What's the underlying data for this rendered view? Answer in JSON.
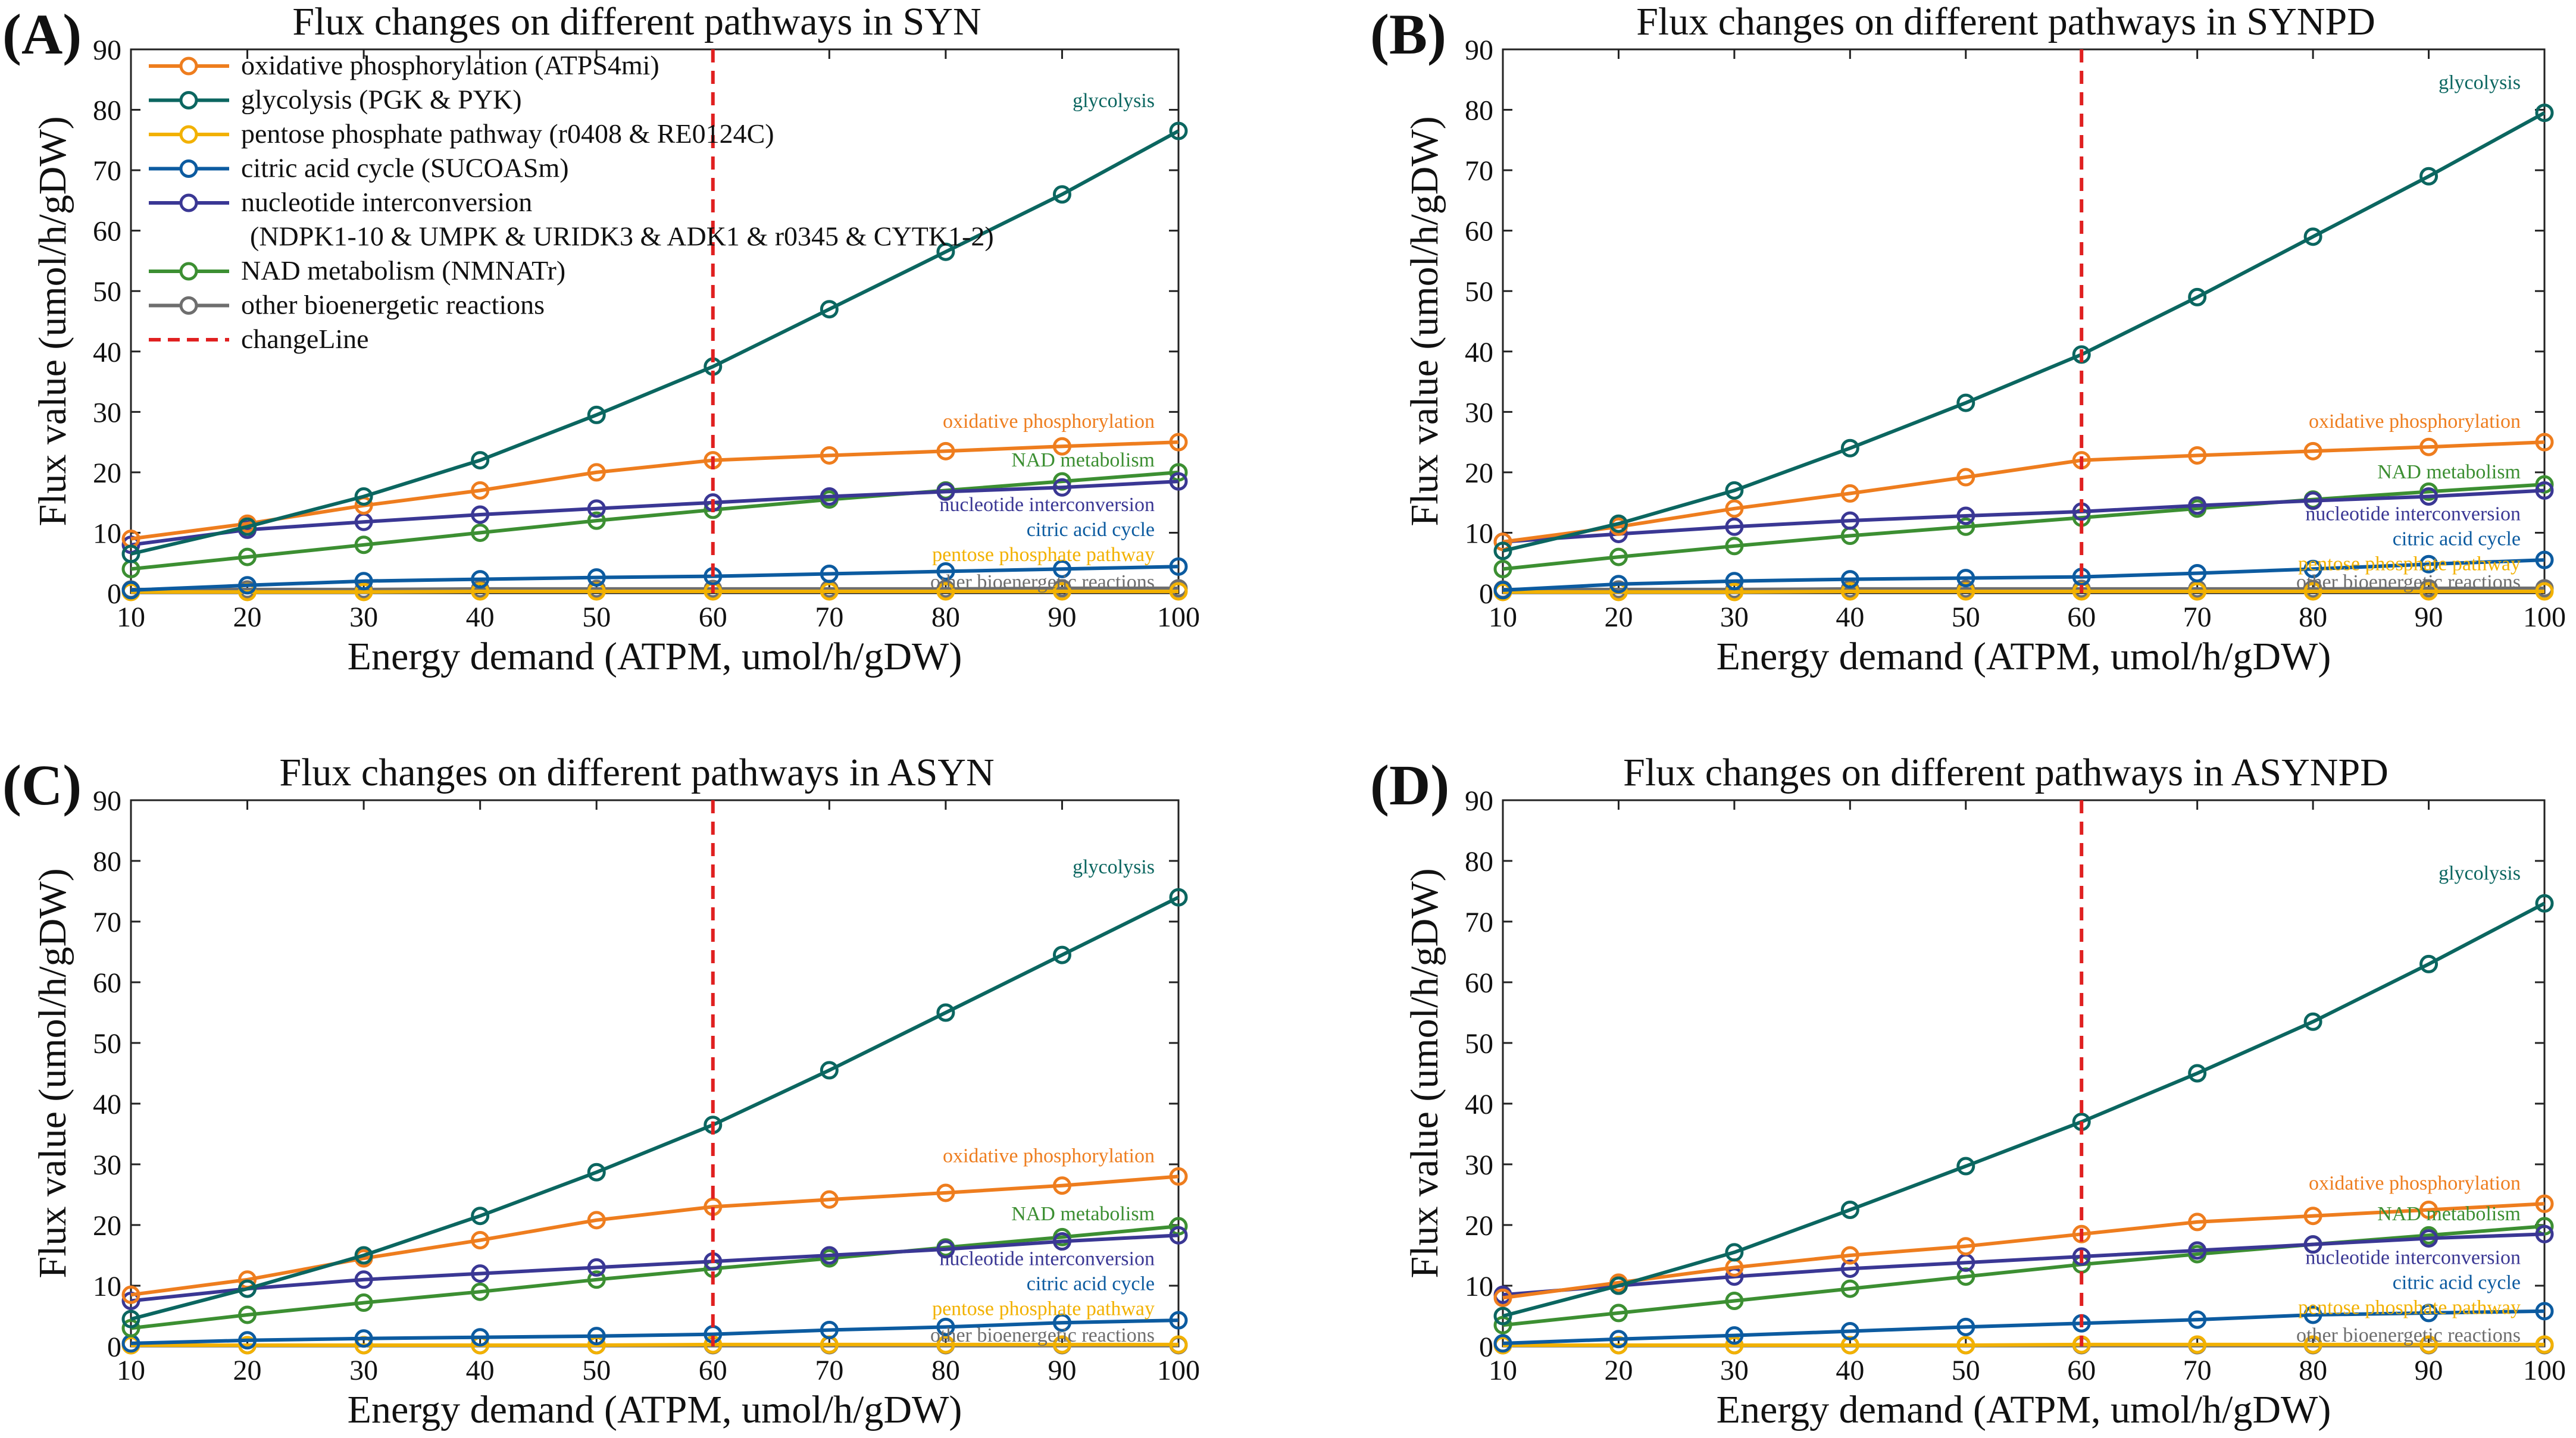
{
  "figure": {
    "legend_entries": [
      {
        "label": "oxidative phosphorylation (ATPS4mi)",
        "color": "#EE7D1E"
      },
      {
        "label": "glycolysis (PGK & PYK)",
        "color": "#0B6660"
      },
      {
        "label": "pentose phosphate pathway (r0408 & RE0124C)",
        "color": "#F2B100"
      },
      {
        "label": "citric acid cycle (SUCOASm)",
        "color": "#0C5BA0"
      },
      {
        "label": "nucleotide interconversion",
        "color": "#3A3794"
      },
      {
        "label": "(NDPK1-10 & UMPK & URIDK3 & ADK1 & r0345 & CYTK1-2)",
        "color": null
      },
      {
        "label": "NAD metabolism (NMNATr)",
        "color": "#3C8F32"
      },
      {
        "label": "other bioenergetic reactions",
        "color": "#6E6E6E"
      },
      {
        "label": "changeLine",
        "color": "#E02020",
        "dashed": true
      }
    ]
  },
  "chart_data": [
    {
      "type": "line",
      "panel_label": "(A)",
      "title": "Flux changes on different pathways in SYN",
      "xlabel": "Energy demand (ATPM, umol/h/gDW)",
      "ylabel": "Flux value (umol/h/gDW)",
      "x": [
        10,
        20,
        30,
        40,
        50,
        60,
        70,
        80,
        90,
        100
      ],
      "xlim": [
        10,
        100
      ],
      "ylim": [
        0,
        90
      ],
      "xticks": [
        "10",
        "20",
        "30",
        "40",
        "50",
        "60",
        "70",
        "80",
        "90",
        "100"
      ],
      "yticks": [
        "0",
        "10",
        "20",
        "30",
        "40",
        "50",
        "60",
        "70",
        "80",
        "90"
      ],
      "change_line_x": 60,
      "legend": true,
      "series": [
        {
          "name": "oxidative phosphorylation",
          "color": "#EE7D1E",
          "values": [
            9,
            11.5,
            14.5,
            17,
            20,
            22,
            22.8,
            23.5,
            24.3,
            25
          ]
        },
        {
          "name": "glycolysis",
          "color": "#0B6660",
          "values": [
            6.5,
            11,
            16,
            22,
            29.5,
            37.5,
            47,
            56.5,
            66,
            76.5
          ]
        },
        {
          "name": "pentose phosphate pathway",
          "color": "#F2B100",
          "values": [
            0.2,
            0.2,
            0.2,
            0.3,
            0.3,
            0.3,
            0.3,
            0.3,
            0.3,
            0.3
          ]
        },
        {
          "name": "citric acid cycle",
          "color": "#0C5BA0",
          "values": [
            0.5,
            1.3,
            2,
            2.3,
            2.6,
            2.8,
            3.2,
            3.6,
            4,
            4.4
          ]
        },
        {
          "name": "nucleotide interconversion",
          "color": "#3A3794",
          "values": [
            8,
            10.5,
            11.8,
            13,
            14,
            15,
            16,
            16.8,
            17.5,
            18.5
          ]
        },
        {
          "name": "NAD metabolism",
          "color": "#3C8F32",
          "values": [
            4,
            6,
            8,
            10,
            12,
            13.8,
            15.5,
            17,
            18.5,
            20
          ]
        },
        {
          "name": "other bioenergetic reactions",
          "color": "#6E6E6E",
          "values": [
            0.6,
            0.6,
            0.6,
            0.7,
            0.7,
            0.7,
            0.7,
            0.7,
            0.8,
            0.8
          ]
        }
      ],
      "annotations": [
        {
          "text": "glycolysis",
          "color": "#0B6660"
        },
        {
          "text": "oxidative phosphorylation",
          "color": "#EE7D1E"
        },
        {
          "text": "NAD metabolism",
          "color": "#3C8F32"
        },
        {
          "text": "nucleotide interconversion",
          "color": "#3A3794"
        },
        {
          "text": "citric acid cycle",
          "color": "#0C5BA0"
        },
        {
          "text": "pentose phosphate pathway",
          "color": "#F2B100"
        },
        {
          "text": "other bioenergetic reactions",
          "color": "#6E6E6E"
        }
      ]
    },
    {
      "type": "line",
      "panel_label": "(B)",
      "title": "Flux changes on different pathways in SYNPD",
      "xlabel": "Energy demand (ATPM, umol/h/gDW)",
      "ylabel": "Flux value (umol/h/gDW)",
      "x": [
        10,
        20,
        30,
        40,
        50,
        60,
        70,
        80,
        90,
        100
      ],
      "xlim": [
        10,
        100
      ],
      "ylim": [
        0,
        90
      ],
      "xticks": [
        "10",
        "20",
        "30",
        "40",
        "50",
        "60",
        "70",
        "80",
        "90",
        "100"
      ],
      "yticks": [
        "0",
        "10",
        "20",
        "30",
        "40",
        "50",
        "60",
        "70",
        "80",
        "90"
      ],
      "change_line_x": 60,
      "legend": false,
      "series": [
        {
          "name": "oxidative phosphorylation",
          "color": "#EE7D1E",
          "values": [
            8.5,
            11,
            14,
            16.5,
            19.2,
            22,
            22.8,
            23.5,
            24.2,
            25
          ]
        },
        {
          "name": "glycolysis",
          "color": "#0B6660",
          "values": [
            7,
            11.5,
            17,
            24,
            31.5,
            39.5,
            49,
            59,
            69,
            79.5
          ]
        },
        {
          "name": "pentose phosphate pathway",
          "color": "#F2B100",
          "values": [
            0.2,
            0.2,
            0.2,
            0.3,
            0.3,
            0.3,
            0.3,
            0.3,
            0.3,
            0.3
          ]
        },
        {
          "name": "citric acid cycle",
          "color": "#0C5BA0",
          "values": [
            0.5,
            1.5,
            2,
            2.3,
            2.5,
            2.7,
            3.3,
            4,
            4.8,
            5.5
          ]
        },
        {
          "name": "nucleotide interconversion",
          "color": "#3A3794",
          "values": [
            8.5,
            9.8,
            11,
            12,
            12.8,
            13.5,
            14.5,
            15.3,
            16,
            17
          ]
        },
        {
          "name": "NAD metabolism",
          "color": "#3C8F32",
          "values": [
            4,
            6,
            7.8,
            9.5,
            11,
            12.5,
            14,
            15.5,
            16.8,
            18
          ]
        },
        {
          "name": "other bioenergetic reactions",
          "color": "#6E6E6E",
          "values": [
            0.6,
            0.6,
            0.6,
            0.7,
            0.7,
            0.7,
            0.7,
            0.7,
            0.8,
            0.8
          ]
        }
      ],
      "annotations": [
        {
          "text": "glycolysis",
          "color": "#0B6660"
        },
        {
          "text": "oxidative phosphorylation",
          "color": "#EE7D1E"
        },
        {
          "text": "NAD metabolism",
          "color": "#3C8F32"
        },
        {
          "text": "nucleotide interconversion",
          "color": "#3A3794"
        },
        {
          "text": "citric acid cycle",
          "color": "#0C5BA0"
        },
        {
          "text": "pentose phosphate pathway",
          "color": "#F2B100"
        },
        {
          "text": "other bioenergetic reactions",
          "color": "#6E6E6E"
        }
      ]
    },
    {
      "type": "line",
      "panel_label": "(C)",
      "title": "Flux changes on different pathways in ASYN",
      "xlabel": "Energy demand (ATPM, umol/h/gDW)",
      "ylabel": "Flux value (umol/h/gDW)",
      "x": [
        10,
        20,
        30,
        40,
        50,
        60,
        70,
        80,
        90,
        100
      ],
      "xlim": [
        10,
        100
      ],
      "ylim": [
        0,
        90
      ],
      "xticks": [
        "10",
        "20",
        "30",
        "40",
        "50",
        "60",
        "70",
        "80",
        "90",
        "100"
      ],
      "yticks": [
        "0",
        "10",
        "20",
        "30",
        "40",
        "50",
        "60",
        "70",
        "80",
        "90"
      ],
      "change_line_x": 60,
      "legend": false,
      "series": [
        {
          "name": "oxidative phosphorylation",
          "color": "#EE7D1E",
          "values": [
            8.5,
            11,
            14.5,
            17.5,
            20.8,
            23,
            24.2,
            25.3,
            26.5,
            28
          ]
        },
        {
          "name": "glycolysis",
          "color": "#0B6660",
          "values": [
            4.5,
            9.5,
            15,
            21.5,
            28.7,
            36.5,
            45.5,
            55,
            64.5,
            74
          ]
        },
        {
          "name": "pentose phosphate pathway",
          "color": "#F2B100",
          "values": [
            0.2,
            0.2,
            0.2,
            0.2,
            0.2,
            0.3,
            0.3,
            0.3,
            0.3,
            0.3
          ]
        },
        {
          "name": "citric acid cycle",
          "color": "#0C5BA0",
          "values": [
            0.5,
            1,
            1.3,
            1.5,
            1.7,
            2,
            2.7,
            3.2,
            3.9,
            4.3
          ]
        },
        {
          "name": "nucleotide interconversion",
          "color": "#3A3794",
          "values": [
            7.5,
            9.5,
            11,
            12,
            13,
            14,
            15,
            16,
            17.3,
            18.3
          ]
        },
        {
          "name": "NAD metabolism",
          "color": "#3C8F32",
          "values": [
            3,
            5.2,
            7.2,
            9,
            11,
            12.8,
            14.5,
            16.3,
            18,
            19.8
          ]
        },
        {
          "name": "other bioenergetic reactions",
          "color": "#6E6E6E",
          "values": [
            0.2,
            0.2,
            0.2,
            0.2,
            0.2,
            0.2,
            0.2,
            0.2,
            0.2,
            0.2
          ]
        }
      ],
      "annotations": [
        {
          "text": "glycolysis",
          "color": "#0B6660"
        },
        {
          "text": "oxidative phosphorylation",
          "color": "#EE7D1E"
        },
        {
          "text": "NAD metabolism",
          "color": "#3C8F32"
        },
        {
          "text": "nucleotide interconversion",
          "color": "#3A3794"
        },
        {
          "text": "citric acid cycle",
          "color": "#0C5BA0"
        },
        {
          "text": "pentose phosphate pathway",
          "color": "#F2B100"
        },
        {
          "text": "other bioenergetic reactions",
          "color": "#6E6E6E"
        }
      ]
    },
    {
      "type": "line",
      "panel_label": "(D)",
      "title": "Flux changes on different pathways in ASYNPD",
      "xlabel": "Energy demand (ATPM, umol/h/gDW)",
      "ylabel": "Flux value (umol/h/gDW)",
      "x": [
        10,
        20,
        30,
        40,
        50,
        60,
        70,
        80,
        90,
        100
      ],
      "xlim": [
        10,
        100
      ],
      "ylim": [
        0,
        90
      ],
      "xticks": [
        "10",
        "20",
        "30",
        "40",
        "50",
        "60",
        "70",
        "80",
        "90",
        "100"
      ],
      "yticks": [
        "0",
        "10",
        "20",
        "30",
        "40",
        "50",
        "60",
        "70",
        "80",
        "90"
      ],
      "change_line_x": 60,
      "legend": false,
      "series": [
        {
          "name": "oxidative phosphorylation",
          "color": "#EE7D1E",
          "values": [
            8,
            10.5,
            13,
            15,
            16.5,
            18.5,
            20.5,
            21.5,
            22.5,
            23.5
          ]
        },
        {
          "name": "glycolysis",
          "color": "#0B6660",
          "values": [
            5,
            10,
            15.5,
            22.5,
            29.7,
            37,
            45,
            53.5,
            63,
            73
          ]
        },
        {
          "name": "pentose phosphate pathway",
          "color": "#F2B100",
          "values": [
            0.2,
            0.2,
            0.2,
            0.2,
            0.2,
            0.3,
            0.3,
            0.3,
            0.3,
            0.3
          ]
        },
        {
          "name": "citric acid cycle",
          "color": "#0C5BA0",
          "values": [
            0.5,
            1.2,
            1.8,
            2.5,
            3.2,
            3.8,
            4.4,
            5.2,
            5.5,
            5.8
          ]
        },
        {
          "name": "nucleotide interconversion",
          "color": "#3A3794",
          "values": [
            8.5,
            10,
            11.5,
            12.8,
            13.8,
            14.8,
            15.8,
            16.8,
            17.8,
            18.5
          ]
        },
        {
          "name": "NAD metabolism",
          "color": "#3C8F32",
          "values": [
            3.5,
            5.5,
            7.5,
            9.5,
            11.5,
            13.5,
            15.2,
            16.8,
            18.3,
            19.8
          ]
        },
        {
          "name": "other bioenergetic reactions",
          "color": "#6E6E6E",
          "values": [
            0.2,
            0.2,
            0.2,
            0.2,
            0.2,
            0.2,
            0.2,
            0.2,
            0.2,
            0.2
          ]
        }
      ],
      "annotations": [
        {
          "text": "glycolysis",
          "color": "#0B6660"
        },
        {
          "text": "oxidative phosphorylation",
          "color": "#EE7D1E"
        },
        {
          "text": "NAD metabolism",
          "color": "#3C8F32"
        },
        {
          "text": "nucleotide interconversion",
          "color": "#3A3794"
        },
        {
          "text": "citric acid cycle",
          "color": "#0C5BA0"
        },
        {
          "text": "pentose phosphate pathway",
          "color": "#F2B100"
        },
        {
          "text": "other bioenergetic reactions",
          "color": "#6E6E6E"
        }
      ]
    }
  ]
}
